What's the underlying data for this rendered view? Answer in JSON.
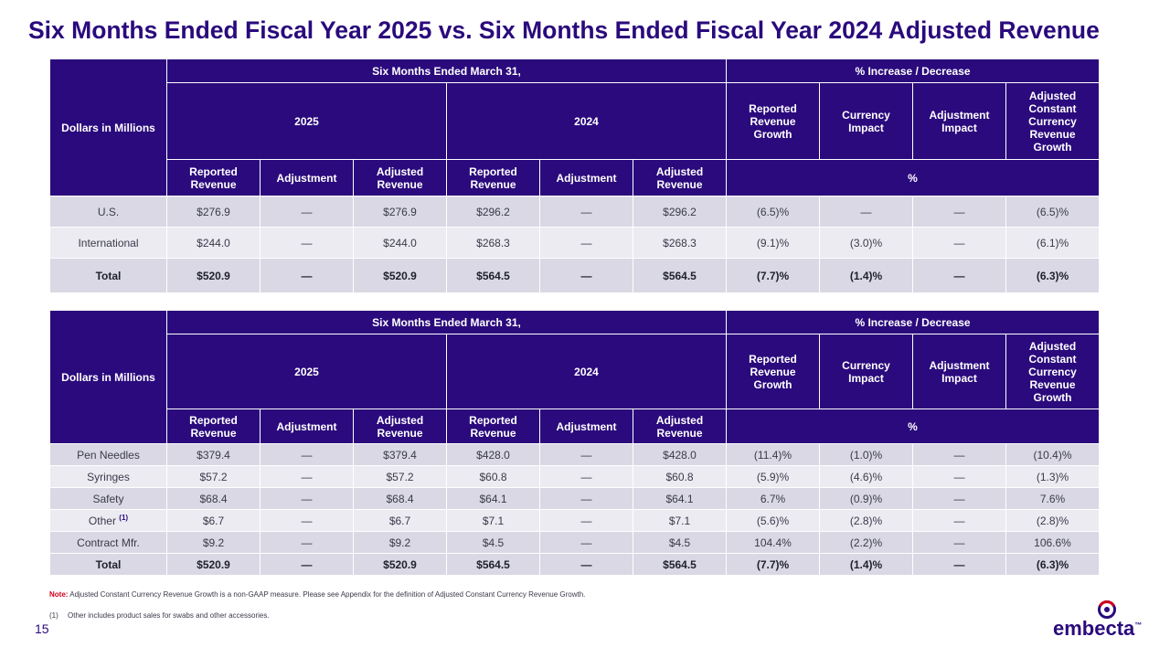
{
  "title": "Six Months Ended Fiscal Year 2025 vs. Six Months Ended Fiscal Year 2024 Adjusted Revenue",
  "header": {
    "dollars": "Dollars in Millions",
    "period": "Six Months Ended March 31,",
    "pct": "% Increase / Decrease",
    "y2025": "2025",
    "y2024": "2024",
    "growth_cols": [
      "Reported Revenue Growth",
      "Currency Impact",
      "Adjustment Impact",
      "Adjusted Constant Currency Revenue Growth"
    ],
    "sub_cols": [
      "Reported Revenue",
      "Adjustment",
      "Adjusted Revenue",
      "Reported Revenue",
      "Adjustment",
      "Adjusted Revenue"
    ],
    "pct_symbol": "%"
  },
  "table1": {
    "rows": [
      {
        "label": "U.S.",
        "cells": [
          "$276.9",
          "—",
          "$276.9",
          "$296.2",
          "—",
          "$296.2",
          "(6.5)%",
          "—",
          "—",
          "(6.5)%"
        ]
      },
      {
        "label": "International",
        "cells": [
          "$244.0",
          "—",
          "$244.0",
          "$268.3",
          "—",
          "$268.3",
          "(9.1)%",
          "(3.0)%",
          "—",
          "(6.1)%"
        ]
      },
      {
        "label": "Total",
        "cells": [
          "$520.9",
          "—",
          "$520.9",
          "$564.5",
          "—",
          "$564.5",
          "(7.7)%",
          "(1.4)%",
          "—",
          "(6.3)%"
        ]
      }
    ]
  },
  "table2": {
    "rows": [
      {
        "label": "Pen Needles",
        "cells": [
          "$379.4",
          "—",
          "$379.4",
          "$428.0",
          "—",
          "$428.0",
          "(11.4)%",
          "(1.0)%",
          "—",
          "(10.4)%"
        ]
      },
      {
        "label": "Syringes",
        "cells": [
          "$57.2",
          "—",
          "$57.2",
          "$60.8",
          "—",
          "$60.8",
          "(5.9)%",
          "(4.6)%",
          "—",
          "(1.3)%"
        ]
      },
      {
        "label": "Safety",
        "cells": [
          "$68.4",
          "—",
          "$68.4",
          "$64.1",
          "—",
          "$64.1",
          "6.7%",
          "(0.9)%",
          "—",
          "7.6%"
        ]
      },
      {
        "label": "Other",
        "footnote": "(1)",
        "cells": [
          "$6.7",
          "—",
          "$6.7",
          "$7.1",
          "—",
          "$7.1",
          "(5.6)%",
          "(2.8)%",
          "—",
          "(2.8)%"
        ]
      },
      {
        "label": "Contract Mfr.",
        "cells": [
          "$9.2",
          "—",
          "$9.2",
          "$4.5",
          "—",
          "$4.5",
          "104.4%",
          "(2.2)%",
          "—",
          "106.6%"
        ]
      },
      {
        "label": "Total",
        "cells": [
          "$520.9",
          "—",
          "$520.9",
          "$564.5",
          "—",
          "$564.5",
          "(7.7)%",
          "(1.4)%",
          "—",
          "(6.3)%"
        ]
      }
    ]
  },
  "note": {
    "label": "Note:",
    "text": " Adjusted Constant Currency Revenue Growth is a non-GAAP measure. Please see Appendix for the definition of Adjusted Constant Currency Revenue Growth."
  },
  "footnote": {
    "num": "(1)",
    "text": "Other includes product sales for swabs and other accessories."
  },
  "page_number": "15",
  "logo": {
    "text": "embecta",
    "tm": "™"
  },
  "colors": {
    "primary": "#2a0a7c",
    "accent": "#d0021b",
    "row_dark": "#d9d8e4",
    "row_light": "#ecebf2"
  }
}
